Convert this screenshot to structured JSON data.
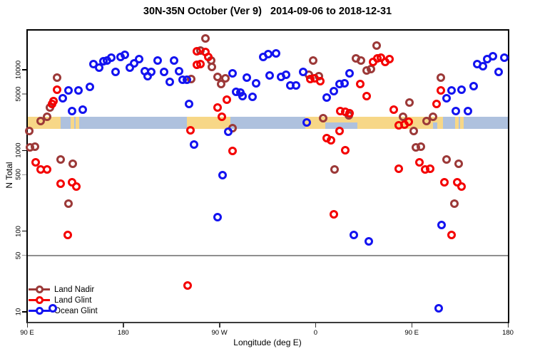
{
  "title": "30N-35N October (Ver 9)   2014-09-06 to 2018-12-31",
  "axes": {
    "x": {
      "label": "Longitude (deg E)",
      "ticks": [
        {
          "value": 90,
          "label": "90 E"
        },
        {
          "value": 180,
          "label": "180"
        },
        {
          "value": 270,
          "label": "90 W"
        },
        {
          "value": 360,
          "label": "0"
        },
        {
          "value": 450,
          "label": "90 E"
        },
        {
          "value": 540,
          "label": "180"
        }
      ]
    },
    "y": {
      "label": "N Total",
      "ticks": [
        {
          "value": 10000,
          "label": "10000",
          "minor": false
        },
        {
          "value": 5000,
          "label": "5000",
          "minor": true
        },
        {
          "value": 1000,
          "label": "1000",
          "minor": false
        },
        {
          "value": 500,
          "label": "500",
          "minor": true
        },
        {
          "value": 100,
          "label": "100",
          "minor": false
        },
        {
          "value": 50,
          "label": "50",
          "minor": true
        },
        {
          "value": 10,
          "label": "10",
          "minor": false
        }
      ],
      "reference_line_value": 50
    }
  },
  "legend": [
    {
      "label": "Land Nadir",
      "color": "#9c3938"
    },
    {
      "label": "Land Glint",
      "color": "#f40000"
    },
    {
      "label": "Ocean Glint",
      "color": "#1313f0"
    }
  ],
  "map_strip": {
    "ocean_color": "#aec1de",
    "land_color": "#f7d787",
    "land_segments_lon": [
      [
        90,
        121.4
      ],
      [
        130.8,
        134.1
      ],
      [
        135.5,
        138.5
      ],
      [
        239.8,
        280.5
      ],
      [
        350.7,
        479.1
      ],
      [
        490.8,
        494.1
      ],
      [
        495.5,
        498.5
      ]
    ],
    "water_notches_lon": [
      [
        368.8,
        398.9
      ],
      [
        470,
        474
      ]
    ]
  },
  "chart_data": {
    "type": "scatter",
    "title": "30N-35N October (Ver 9)   2014-09-06 to 2018-12-31",
    "xlabel": "Longitude (deg E)",
    "ylabel": "N Total",
    "xlim": [
      90,
      540
    ],
    "ylim": [
      7.5,
      31850
    ],
    "ylog": true,
    "legend_position": "bottom-left",
    "grid": false,
    "series": [
      {
        "name": "Land Nadir",
        "color": "#9c3938",
        "points": [
          [
            118.1,
            8000
          ],
          [
            111.4,
            3400
          ],
          [
            102.7,
            2300
          ],
          [
            108.7,
            2600
          ],
          [
            92,
            1740
          ],
          [
            92.7,
            1090
          ],
          [
            97.4,
            1110
          ],
          [
            121.4,
            770
          ],
          [
            132.8,
            680
          ],
          [
            128.8,
            220
          ],
          [
            257.2,
            24400
          ],
          [
            252.5,
            17300
          ],
          [
            262.5,
            13000
          ],
          [
            263.2,
            10800
          ],
          [
            243.8,
            7700
          ],
          [
            268.5,
            8200
          ],
          [
            275.9,
            7800
          ],
          [
            271.9,
            6700
          ],
          [
            282.6,
            1890
          ],
          [
            357.5,
            13000
          ],
          [
            353.4,
            8700
          ],
          [
            362.8,
            8300
          ],
          [
            366.8,
            2500
          ],
          [
            377.5,
            580
          ],
          [
            390.9,
            2700
          ],
          [
            397.6,
            13800
          ],
          [
            402.3,
            13000
          ],
          [
            407.6,
            9800
          ],
          [
            411.6,
            10200
          ],
          [
            417,
            20000
          ],
          [
            447.7,
            3900
          ],
          [
            441.7,
            2600
          ],
          [
            451.7,
            1740
          ],
          [
            463.8,
            2300
          ],
          [
            469.8,
            2600
          ],
          [
            477.1,
            8000
          ],
          [
            453.7,
            1090
          ],
          [
            458.4,
            1110
          ],
          [
            482.5,
            770
          ],
          [
            493.8,
            680
          ],
          [
            489.8,
            220
          ]
        ]
      },
      {
        "name": "Land Glint",
        "color": "#f40000",
        "points": [
          [
            118.1,
            5700
          ],
          [
            114.7,
            4100
          ],
          [
            113.4,
            3800
          ],
          [
            98,
            710
          ],
          [
            102.7,
            580
          ],
          [
            108.7,
            580
          ],
          [
            121.4,
            390
          ],
          [
            132.1,
            400
          ],
          [
            136.1,
            360
          ],
          [
            128.1,
            90
          ],
          [
            249.1,
            17000
          ],
          [
            257.2,
            16600
          ],
          [
            259.8,
            14400
          ],
          [
            249.1,
            11500
          ],
          [
            252.5,
            11800
          ],
          [
            277.2,
            4300
          ],
          [
            268.5,
            3400
          ],
          [
            272.5,
            2600
          ],
          [
            243.1,
            1780
          ],
          [
            240.4,
            21
          ],
          [
            282.6,
            990
          ],
          [
            354.8,
            7700
          ],
          [
            358.8,
            7800
          ],
          [
            364.1,
            7200
          ],
          [
            370.2,
            1420
          ],
          [
            374.2,
            1340
          ],
          [
            387.5,
            1010
          ],
          [
            376.8,
            160
          ],
          [
            382.9,
            3100
          ],
          [
            387.5,
            3000
          ],
          [
            391.5,
            2900
          ],
          [
            382.2,
            1740
          ],
          [
            401.6,
            6700
          ],
          [
            407.6,
            4700
          ],
          [
            413.6,
            12500
          ],
          [
            417.7,
            13800
          ],
          [
            421,
            14100
          ],
          [
            425,
            12500
          ],
          [
            429,
            13600
          ],
          [
            433,
            3200
          ],
          [
            437.7,
            2050
          ],
          [
            443,
            2100
          ],
          [
            447,
            2270
          ],
          [
            437.7,
            590
          ],
          [
            457.1,
            710
          ],
          [
            462.4,
            580
          ],
          [
            467.1,
            590
          ],
          [
            473.1,
            3800
          ],
          [
            477.1,
            5500
          ],
          [
            480.5,
            400
          ],
          [
            492.5,
            400
          ],
          [
            496.5,
            360
          ],
          [
            487.1,
            90
          ]
        ]
      },
      {
        "name": "Ocean Glint",
        "color": "#1313f0",
        "points": [
          [
            123.4,
            4400
          ],
          [
            128.8,
            5500
          ],
          [
            138.1,
            5500
          ],
          [
            148.8,
            6100
          ],
          [
            132.1,
            3100
          ],
          [
            142.2,
            3200
          ],
          [
            152.2,
            11800
          ],
          [
            157.5,
            10600
          ],
          [
            161.5,
            12800
          ],
          [
            164.9,
            13000
          ],
          [
            168.9,
            14100
          ],
          [
            172.9,
            9400
          ],
          [
            177.6,
            14400
          ],
          [
            181.6,
            15300
          ],
          [
            186.3,
            10600
          ],
          [
            190.3,
            12000
          ],
          [
            195,
            13600
          ],
          [
            200.3,
            9600
          ],
          [
            203,
            8300
          ],
          [
            206.3,
            9400
          ],
          [
            212.4,
            13000
          ],
          [
            218.4,
            9400
          ],
          [
            223.7,
            7100
          ],
          [
            227.7,
            13000
          ],
          [
            232.4,
            9600
          ],
          [
            235.8,
            7500
          ],
          [
            239.8,
            7500
          ],
          [
            246.5,
            1180
          ],
          [
            241.8,
            3800
          ],
          [
            278.6,
            1700
          ],
          [
            282.6,
            9000
          ],
          [
            285.9,
            5300
          ],
          [
            289.3,
            5200
          ],
          [
            291.9,
            4700
          ],
          [
            295.9,
            8000
          ],
          [
            301.3,
            4600
          ],
          [
            304.6,
            6800
          ],
          [
            311.3,
            14400
          ],
          [
            316,
            15600
          ],
          [
            322.7,
            16000
          ],
          [
            316.7,
            8500
          ],
          [
            327.4,
            8200
          ],
          [
            332.1,
            8700
          ],
          [
            336.1,
            6400
          ],
          [
            341.4,
            6400
          ],
          [
            348.1,
            9400
          ],
          [
            351.4,
            2220
          ],
          [
            370.2,
            4500
          ],
          [
            376.8,
            5400
          ],
          [
            382.2,
            6700
          ],
          [
            386.9,
            6800
          ],
          [
            391.5,
            9000
          ],
          [
            273.2,
            490
          ],
          [
            268.5,
            150
          ],
          [
            395.6,
            90
          ],
          [
            409.6,
            75
          ],
          [
            482.5,
            4400
          ],
          [
            487.1,
            5500
          ],
          [
            496.5,
            5700
          ],
          [
            507.9,
            6300
          ],
          [
            491.1,
            3100
          ],
          [
            502.5,
            3100
          ],
          [
            511.2,
            11800
          ],
          [
            516.6,
            11100
          ],
          [
            520.6,
            13600
          ],
          [
            525.9,
            14700
          ],
          [
            531.3,
            9400
          ],
          [
            536.6,
            14100
          ],
          [
            477.8,
            120
          ],
          [
            114.1,
            11
          ],
          [
            475.1,
            11
          ]
        ]
      }
    ]
  }
}
